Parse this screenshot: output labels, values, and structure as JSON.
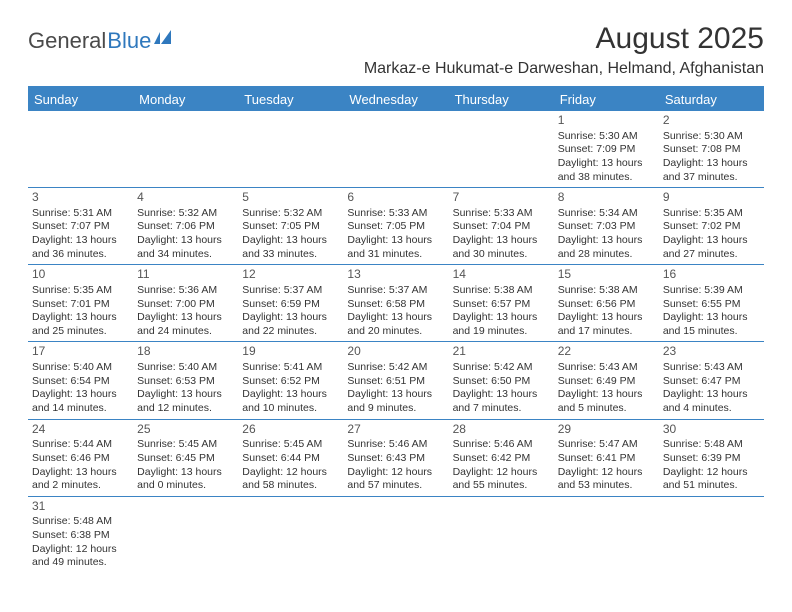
{
  "logo": {
    "part1": "General",
    "part2": "Blue"
  },
  "title": "August 2025",
  "subtitle": "Markaz-e Hukumat-e Darweshan, Helmand, Afghanistan",
  "colors": {
    "accent": "#3b84c4",
    "text": "#333333",
    "logo_gray": "#4a4a4a",
    "logo_blue": "#2f78bd",
    "bg": "#ffffff"
  },
  "weekdays": [
    "Sunday",
    "Monday",
    "Tuesday",
    "Wednesday",
    "Thursday",
    "Friday",
    "Saturday"
  ],
  "weeks": [
    [
      null,
      null,
      null,
      null,
      null,
      {
        "n": "1",
        "sr": "5:30 AM",
        "ss": "7:09 PM",
        "dl": "13 hours and 38 minutes."
      },
      {
        "n": "2",
        "sr": "5:30 AM",
        "ss": "7:08 PM",
        "dl": "13 hours and 37 minutes."
      }
    ],
    [
      {
        "n": "3",
        "sr": "5:31 AM",
        "ss": "7:07 PM",
        "dl": "13 hours and 36 minutes."
      },
      {
        "n": "4",
        "sr": "5:32 AM",
        "ss": "7:06 PM",
        "dl": "13 hours and 34 minutes."
      },
      {
        "n": "5",
        "sr": "5:32 AM",
        "ss": "7:05 PM",
        "dl": "13 hours and 33 minutes."
      },
      {
        "n": "6",
        "sr": "5:33 AM",
        "ss": "7:05 PM",
        "dl": "13 hours and 31 minutes."
      },
      {
        "n": "7",
        "sr": "5:33 AM",
        "ss": "7:04 PM",
        "dl": "13 hours and 30 minutes."
      },
      {
        "n": "8",
        "sr": "5:34 AM",
        "ss": "7:03 PM",
        "dl": "13 hours and 28 minutes."
      },
      {
        "n": "9",
        "sr": "5:35 AM",
        "ss": "7:02 PM",
        "dl": "13 hours and 27 minutes."
      }
    ],
    [
      {
        "n": "10",
        "sr": "5:35 AM",
        "ss": "7:01 PM",
        "dl": "13 hours and 25 minutes."
      },
      {
        "n": "11",
        "sr": "5:36 AM",
        "ss": "7:00 PM",
        "dl": "13 hours and 24 minutes."
      },
      {
        "n": "12",
        "sr": "5:37 AM",
        "ss": "6:59 PM",
        "dl": "13 hours and 22 minutes."
      },
      {
        "n": "13",
        "sr": "5:37 AM",
        "ss": "6:58 PM",
        "dl": "13 hours and 20 minutes."
      },
      {
        "n": "14",
        "sr": "5:38 AM",
        "ss": "6:57 PM",
        "dl": "13 hours and 19 minutes."
      },
      {
        "n": "15",
        "sr": "5:38 AM",
        "ss": "6:56 PM",
        "dl": "13 hours and 17 minutes."
      },
      {
        "n": "16",
        "sr": "5:39 AM",
        "ss": "6:55 PM",
        "dl": "13 hours and 15 minutes."
      }
    ],
    [
      {
        "n": "17",
        "sr": "5:40 AM",
        "ss": "6:54 PM",
        "dl": "13 hours and 14 minutes."
      },
      {
        "n": "18",
        "sr": "5:40 AM",
        "ss": "6:53 PM",
        "dl": "13 hours and 12 minutes."
      },
      {
        "n": "19",
        "sr": "5:41 AM",
        "ss": "6:52 PM",
        "dl": "13 hours and 10 minutes."
      },
      {
        "n": "20",
        "sr": "5:42 AM",
        "ss": "6:51 PM",
        "dl": "13 hours and 9 minutes."
      },
      {
        "n": "21",
        "sr": "5:42 AM",
        "ss": "6:50 PM",
        "dl": "13 hours and 7 minutes."
      },
      {
        "n": "22",
        "sr": "5:43 AM",
        "ss": "6:49 PM",
        "dl": "13 hours and 5 minutes."
      },
      {
        "n": "23",
        "sr": "5:43 AM",
        "ss": "6:47 PM",
        "dl": "13 hours and 4 minutes."
      }
    ],
    [
      {
        "n": "24",
        "sr": "5:44 AM",
        "ss": "6:46 PM",
        "dl": "13 hours and 2 minutes."
      },
      {
        "n": "25",
        "sr": "5:45 AM",
        "ss": "6:45 PM",
        "dl": "13 hours and 0 minutes."
      },
      {
        "n": "26",
        "sr": "5:45 AM",
        "ss": "6:44 PM",
        "dl": "12 hours and 58 minutes."
      },
      {
        "n": "27",
        "sr": "5:46 AM",
        "ss": "6:43 PM",
        "dl": "12 hours and 57 minutes."
      },
      {
        "n": "28",
        "sr": "5:46 AM",
        "ss": "6:42 PM",
        "dl": "12 hours and 55 minutes."
      },
      {
        "n": "29",
        "sr": "5:47 AM",
        "ss": "6:41 PM",
        "dl": "12 hours and 53 minutes."
      },
      {
        "n": "30",
        "sr": "5:48 AM",
        "ss": "6:39 PM",
        "dl": "12 hours and 51 minutes."
      }
    ],
    [
      {
        "n": "31",
        "sr": "5:48 AM",
        "ss": "6:38 PM",
        "dl": "12 hours and 49 minutes."
      },
      null,
      null,
      null,
      null,
      null,
      null
    ]
  ],
  "labels": {
    "sunrise": "Sunrise: ",
    "sunset": "Sunset: ",
    "daylight": "Daylight: "
  }
}
